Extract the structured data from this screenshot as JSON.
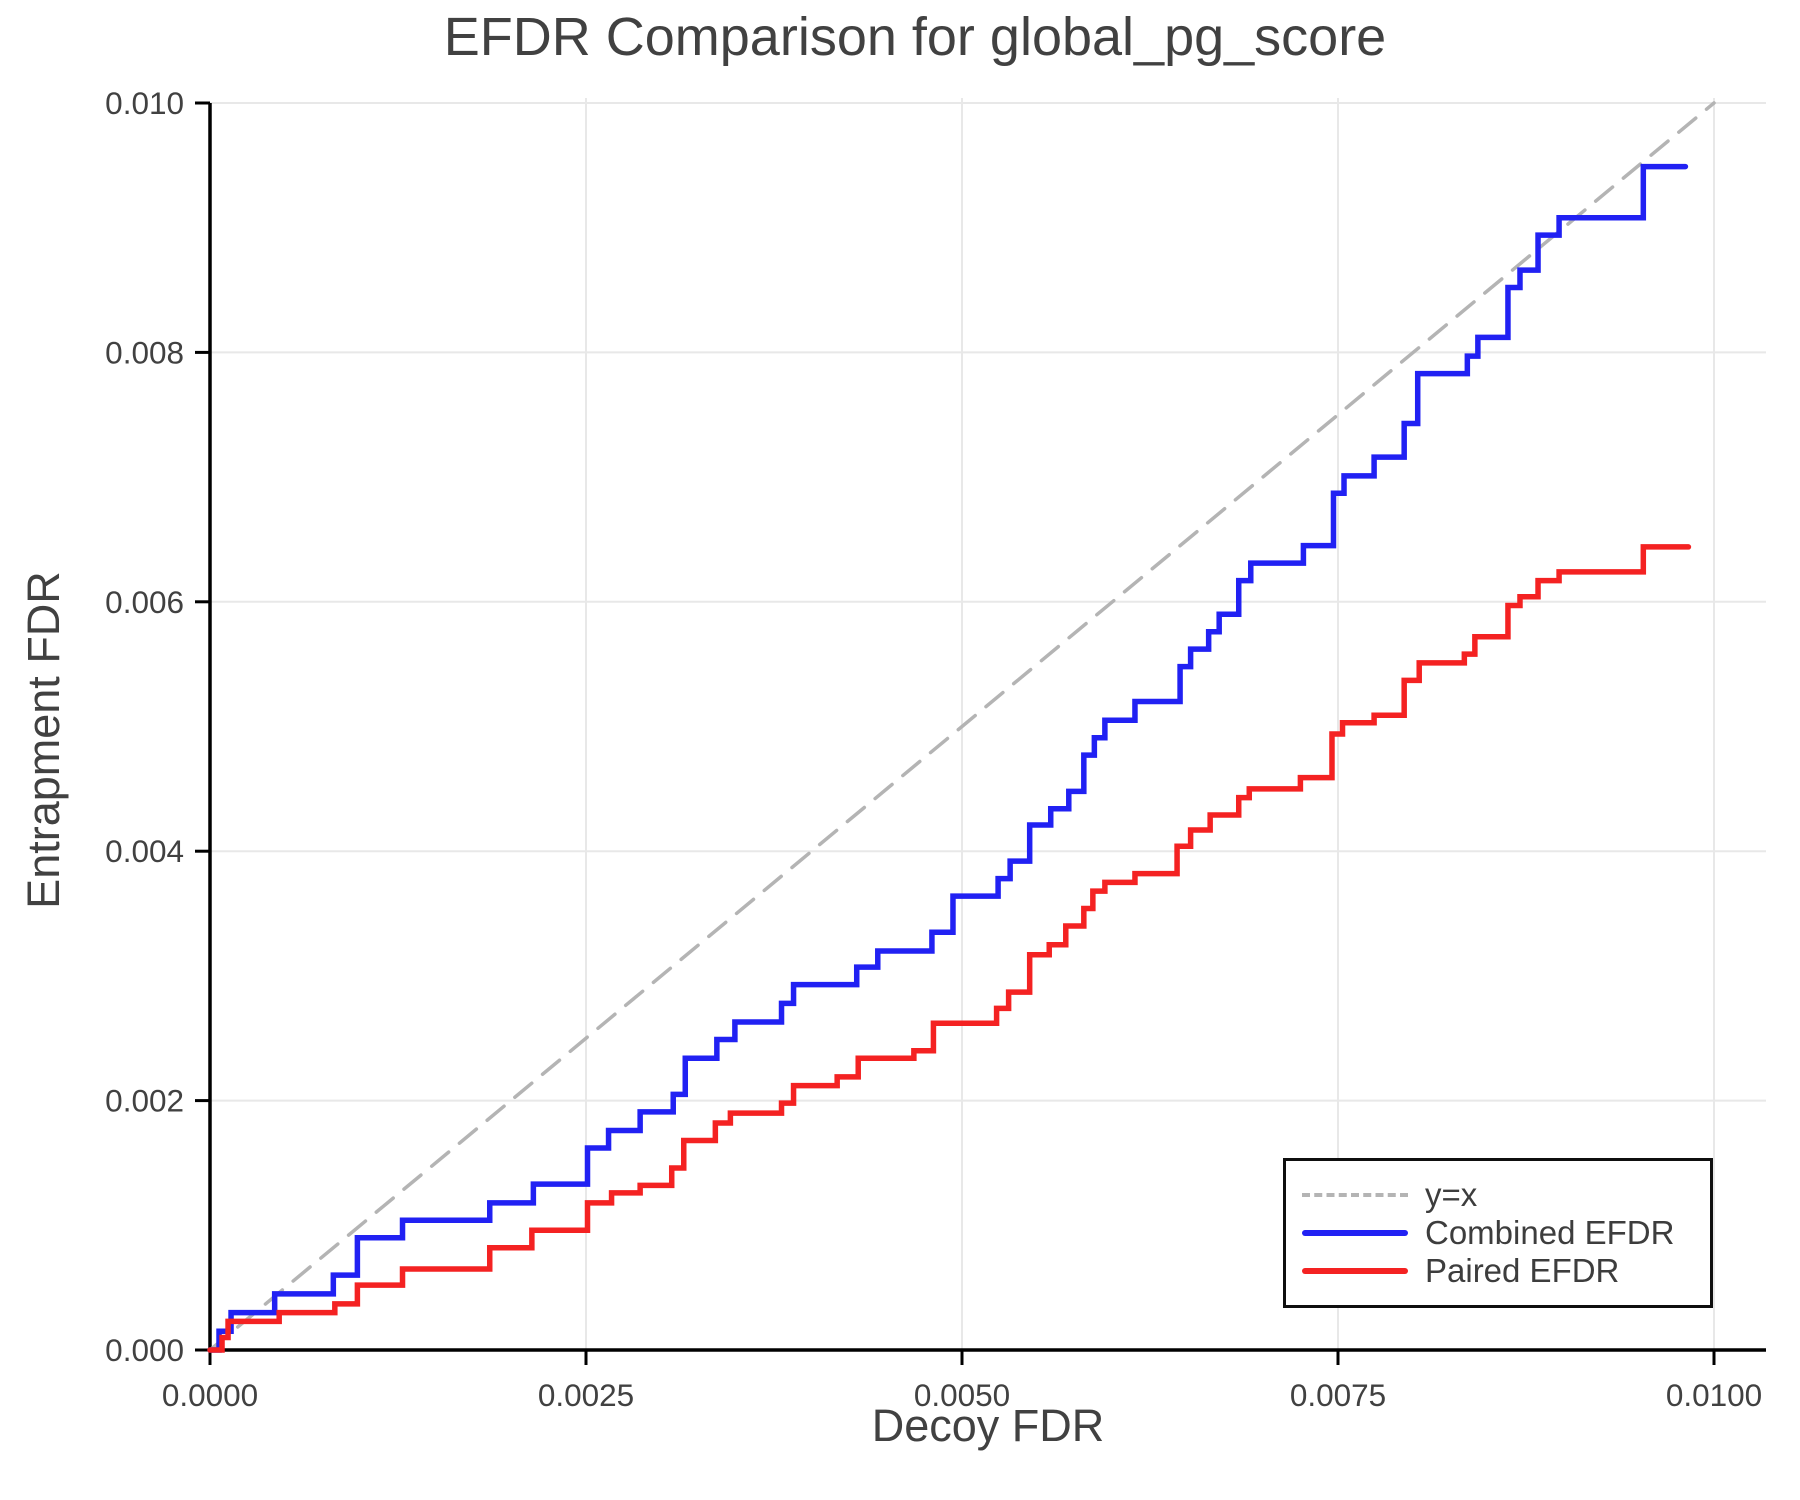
{
  "chart_data": {
    "type": "line",
    "title": "EFDR Comparison for global_pg_score",
    "xlabel": "Decoy FDR",
    "ylabel": "Entrapment FDR",
    "xlim": [
      0,
      0.01034
    ],
    "ylim": [
      0,
      0.01012
    ],
    "grid": true,
    "legend_position": "lower right",
    "x_ticks": {
      "values": [
        0.0,
        0.0025,
        0.005,
        0.0075,
        0.01
      ],
      "labels": [
        "0.0000",
        "0.0025",
        "0.0050",
        "0.0075",
        "0.0100"
      ]
    },
    "y_ticks": {
      "values": [
        0.0,
        0.002,
        0.004,
        0.006,
        0.008,
        0.01
      ],
      "labels": [
        "0.000",
        "0.002",
        "0.004",
        "0.006",
        "0.008",
        "0.010"
      ]
    },
    "colors": {
      "grid": "#e8e8e8",
      "spine": "#000000",
      "tick_label": "#414141",
      "title": "#414141",
      "diagonal": "#b4b4b4",
      "combined": "#2121f3",
      "paired": "#f42222",
      "legend_border": "#0f0f0f",
      "legend_bg": "#ffffff"
    },
    "series": [
      {
        "name": "y=x",
        "style": "dashed",
        "draw": "line",
        "color": "#b4b4b4",
        "points": [
          [
            0.0,
            0.0
          ],
          [
            0.01,
            0.01
          ]
        ]
      },
      {
        "name": "Combined EFDR",
        "style": "solid",
        "draw": "step",
        "color": "#2121f3",
        "points": [
          [
            0.0,
            0.0
          ],
          [
            6e-05,
            0.00015
          ],
          [
            0.00014,
            0.0003
          ],
          [
            0.00043,
            0.00045
          ],
          [
            0.00082,
            0.0006
          ],
          [
            0.00098,
            0.0009
          ],
          [
            0.00128,
            0.00104
          ],
          [
            0.00186,
            0.00118
          ],
          [
            0.00215,
            0.00133
          ],
          [
            0.00251,
            0.00162
          ],
          [
            0.00265,
            0.00176
          ],
          [
            0.00286,
            0.00191
          ],
          [
            0.00308,
            0.00205
          ],
          [
            0.00316,
            0.00234
          ],
          [
            0.00337,
            0.00249
          ],
          [
            0.00349,
            0.00263
          ],
          [
            0.0038,
            0.00278
          ],
          [
            0.00388,
            0.00293
          ],
          [
            0.0043,
            0.00307
          ],
          [
            0.00444,
            0.0032
          ],
          [
            0.0048,
            0.00335
          ],
          [
            0.00494,
            0.00364
          ],
          [
            0.00524,
            0.00378
          ],
          [
            0.00532,
            0.00392
          ],
          [
            0.00545,
            0.00421
          ],
          [
            0.00559,
            0.00434
          ],
          [
            0.00571,
            0.00448
          ],
          [
            0.00581,
            0.00477
          ],
          [
            0.00588,
            0.00491
          ],
          [
            0.00595,
            0.00505
          ],
          [
            0.00615,
            0.0052
          ],
          [
            0.00645,
            0.00548
          ],
          [
            0.00652,
            0.00562
          ],
          [
            0.00664,
            0.00576
          ],
          [
            0.00671,
            0.0059
          ],
          [
            0.00684,
            0.00617
          ],
          [
            0.00692,
            0.00631
          ],
          [
            0.00727,
            0.00645
          ],
          [
            0.00747,
            0.00687
          ],
          [
            0.00754,
            0.00701
          ],
          [
            0.00774,
            0.00716
          ],
          [
            0.00794,
            0.00743
          ],
          [
            0.00803,
            0.00783
          ],
          [
            0.00836,
            0.00797
          ],
          [
            0.00843,
            0.00812
          ],
          [
            0.00863,
            0.00852
          ],
          [
            0.00871,
            0.00866
          ],
          [
            0.00883,
            0.00894
          ],
          [
            0.00897,
            0.00908
          ],
          [
            0.00953,
            0.00949
          ],
          [
            0.00981,
            0.00949
          ]
        ]
      },
      {
        "name": "Paired EFDR",
        "style": "solid",
        "draw": "step",
        "color": "#f42222",
        "points": [
          [
            0.0,
            0.0
          ],
          [
            8e-05,
            0.0001
          ],
          [
            0.00012,
            0.00023
          ],
          [
            0.00046,
            0.0003
          ],
          [
            0.00083,
            0.00037
          ],
          [
            0.00098,
            0.00052
          ],
          [
            0.00128,
            0.00065
          ],
          [
            0.00186,
            0.00082
          ],
          [
            0.00214,
            0.00096
          ],
          [
            0.00251,
            0.00118
          ],
          [
            0.00267,
            0.00126
          ],
          [
            0.00286,
            0.00132
          ],
          [
            0.00307,
            0.00146
          ],
          [
            0.00315,
            0.00168
          ],
          [
            0.00336,
            0.00182
          ],
          [
            0.00346,
            0.0019
          ],
          [
            0.0038,
            0.00198
          ],
          [
            0.00388,
            0.00212
          ],
          [
            0.00417,
            0.00219
          ],
          [
            0.00431,
            0.00234
          ],
          [
            0.00468,
            0.0024
          ],
          [
            0.00481,
            0.00262
          ],
          [
            0.00523,
            0.00274
          ],
          [
            0.00531,
            0.00287
          ],
          [
            0.00545,
            0.00317
          ],
          [
            0.00558,
            0.00325
          ],
          [
            0.00569,
            0.0034
          ],
          [
            0.00581,
            0.00354
          ],
          [
            0.00587,
            0.00368
          ],
          [
            0.00595,
            0.00375
          ],
          [
            0.00615,
            0.00382
          ],
          [
            0.00643,
            0.00404
          ],
          [
            0.00652,
            0.00417
          ],
          [
            0.00665,
            0.00429
          ],
          [
            0.00684,
            0.00443
          ],
          [
            0.00691,
            0.0045
          ],
          [
            0.00725,
            0.00459
          ],
          [
            0.00746,
            0.00494
          ],
          [
            0.00753,
            0.00503
          ],
          [
            0.00774,
            0.00509
          ],
          [
            0.00794,
            0.00537
          ],
          [
            0.00804,
            0.00551
          ],
          [
            0.00834,
            0.00558
          ],
          [
            0.00841,
            0.00572
          ],
          [
            0.00863,
            0.00597
          ],
          [
            0.00871,
            0.00604
          ],
          [
            0.00883,
            0.00617
          ],
          [
            0.00897,
            0.00624
          ],
          [
            0.00953,
            0.00644
          ],
          [
            0.00983,
            0.00644
          ]
        ]
      }
    ]
  }
}
